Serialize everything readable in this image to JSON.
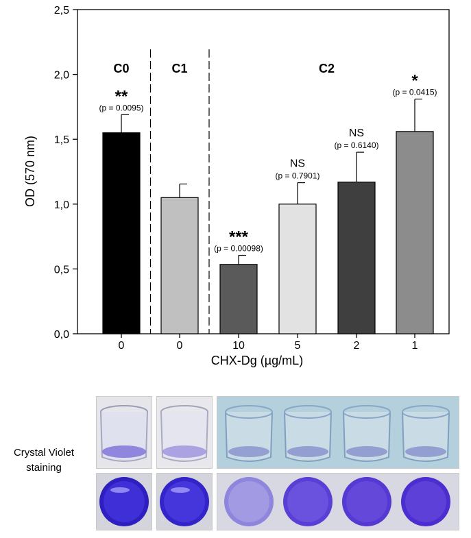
{
  "chart_data": {
    "type": "bar",
    "categories": [
      "0",
      "0",
      "10",
      "5",
      "2",
      "1"
    ],
    "values": [
      1.55,
      1.05,
      0.535,
      1.0,
      1.17,
      1.56
    ],
    "errors": [
      0.14,
      0.105,
      0.07,
      0.165,
      0.23,
      0.25
    ],
    "bar_colors": [
      "#000000",
      "#c0c0c0",
      "#5a5a5a",
      "#e2e2e2",
      "#3f3f3f",
      "#8c8c8c"
    ],
    "significance": [
      {
        "stars": "**",
        "p": "(p = 0.0095)"
      },
      {
        "stars": "",
        "p": ""
      },
      {
        "stars": "***",
        "p": "(p = 0.00098)"
      },
      {
        "stars": "NS",
        "p": "(p = 0.7901)"
      },
      {
        "stars": "NS",
        "p": "(p = 0.6140)"
      },
      {
        "stars": "*",
        "p": "(p = 0.0415)"
      }
    ],
    "groups": [
      {
        "label": "C0",
        "from": 0,
        "to": 0
      },
      {
        "label": "C1",
        "from": 1,
        "to": 1
      },
      {
        "label": "C2",
        "from": 2,
        "to": 5
      }
    ],
    "ylim": [
      0,
      2.5
    ],
    "yticks": [
      "0,0",
      "0,5",
      "1,0",
      "1,5",
      "2,0",
      "2,5"
    ],
    "ylabel": "OD (570 nm)",
    "xlabel": "CHX-Dg (µg/mL)",
    "grid": false
  },
  "photos": {
    "label": "Crystal Violet staining",
    "well_colors": {
      "side": "#c7cbe8",
      "top": "#4a3fd0",
      "c2_background": "#a9c9d8"
    }
  }
}
